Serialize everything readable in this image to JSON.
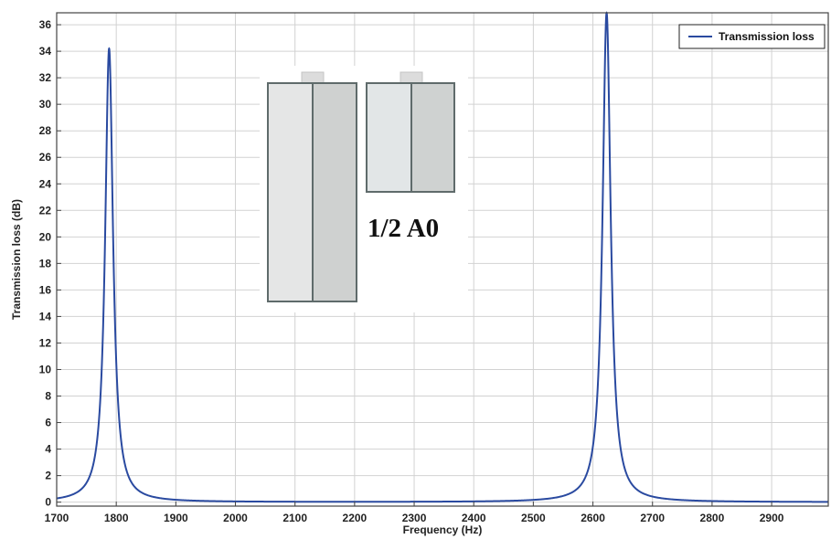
{
  "chart_data": {
    "type": "line",
    "xlabel": "Frequency (Hz)",
    "ylabel": "Transmission loss (dB)",
    "xlim": [
      1700,
      2995
    ],
    "ylim": [
      -0.3,
      36.9
    ],
    "x_ticks": [
      1700,
      1800,
      1900,
      2000,
      2100,
      2200,
      2300,
      2400,
      2500,
      2600,
      2700,
      2800,
      2900
    ],
    "y_ticks": [
      0,
      2,
      4,
      6,
      8,
      10,
      12,
      14,
      16,
      18,
      20,
      22,
      24,
      26,
      28,
      30,
      32,
      34,
      36
    ],
    "grid": true,
    "legend_position": "top-right",
    "series": [
      {
        "name": "Transmission loss",
        "color": "#2a4aa0",
        "resonances": [
          {
            "frequency": 1788,
            "peak": 34.2,
            "width": 16.0
          },
          {
            "frequency": 2623,
            "peak": 36.9,
            "width": 16.5
          }
        ],
        "x_sampled": [
          1700,
          1750,
          1770,
          1780,
          1785,
          1788,
          1791,
          1796,
          1806,
          1830,
          1900,
          2000,
          2100,
          2200,
          2300,
          2400,
          2500,
          2550,
          2600,
          2615,
          2620,
          2623,
          2626,
          2631,
          2650,
          2700,
          2800,
          2900,
          2995
        ],
        "y_sampled": [
          0.9,
          3.7,
          8.9,
          16.1,
          26.0,
          34.2,
          26.0,
          16.1,
          8.9,
          3.7,
          0.7,
          0.2,
          0.1,
          0.05,
          0.1,
          0.2,
          0.5,
          1.4,
          7.1,
          21.7,
          31.1,
          36.9,
          31.1,
          21.7,
          6.3,
          1.0,
          0.3,
          0.15,
          0.1
        ]
      }
    ],
    "inset": {
      "label": "1/2 A0"
    }
  }
}
